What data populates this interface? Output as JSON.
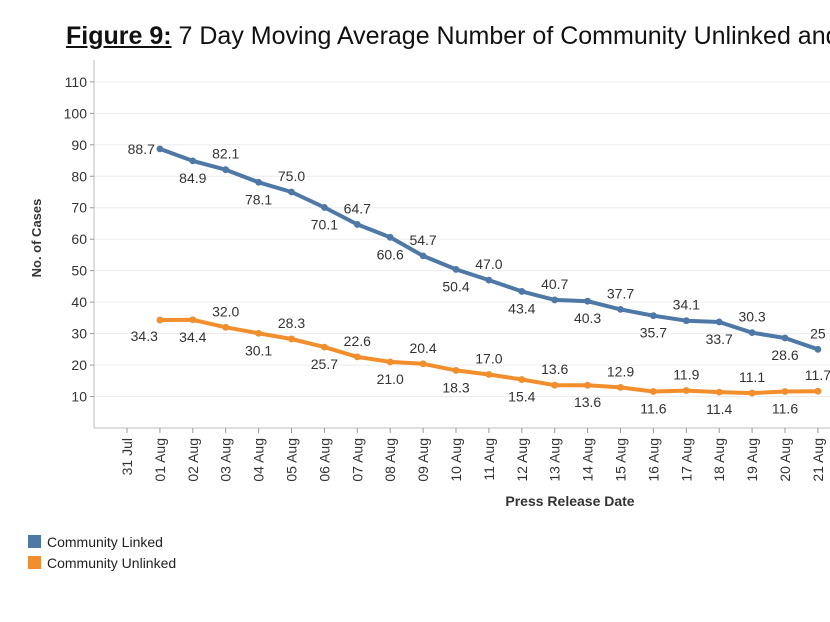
{
  "title": {
    "prefix": "Figure 9:",
    "text": "7 Day Moving Average Number of Community Unlinked and"
  },
  "chart_data": {
    "type": "line",
    "xlabel": "Press Release Date",
    "ylabel": "No. of Cases",
    "categories": [
      "31 Jul",
      "01 Aug",
      "02 Aug",
      "03 Aug",
      "04 Aug",
      "05 Aug",
      "06 Aug",
      "07 Aug",
      "08 Aug",
      "09 Aug",
      "10 Aug",
      "11 Aug",
      "12 Aug",
      "13 Aug",
      "14 Aug",
      "15 Aug",
      "16 Aug",
      "17 Aug",
      "18 Aug",
      "19 Aug",
      "20 Aug",
      "21 Aug"
    ],
    "yticks": [
      10,
      20,
      30,
      40,
      50,
      60,
      70,
      80,
      90,
      100,
      110
    ],
    "ylim": [
      0,
      115
    ],
    "grid": true,
    "legend_position": "bottom-left",
    "series": [
      {
        "name": "Community Linked",
        "color": "#4e79a7",
        "values": [
          null,
          88.7,
          84.9,
          82.1,
          78.1,
          75.0,
          70.1,
          64.7,
          60.6,
          54.7,
          50.4,
          47.0,
          43.4,
          40.7,
          40.3,
          37.7,
          35.7,
          34.1,
          33.7,
          30.3,
          28.6,
          25
        ],
        "labels": [
          null,
          "88.7",
          "84.9",
          "82.1",
          "78.1",
          "75.0",
          "70.1",
          "64.7",
          "60.6",
          "54.7",
          "50.4",
          "47.0",
          "43.4",
          "40.7",
          "40.3",
          "37.7",
          "35.7",
          "34.1",
          "33.7",
          "30.3",
          "28.6",
          "25"
        ]
      },
      {
        "name": "Community Unlinked",
        "color": "#f28e2b",
        "values": [
          null,
          34.3,
          34.4,
          32.0,
          30.1,
          28.3,
          25.7,
          22.6,
          21.0,
          20.4,
          18.3,
          17.0,
          15.4,
          13.6,
          13.6,
          12.9,
          11.6,
          11.9,
          11.4,
          11.1,
          11.6,
          11.7
        ],
        "labels": [
          null,
          "34.3",
          "34.4",
          "32.0",
          "30.1",
          "28.3",
          "25.7",
          "22.6",
          "21.0",
          "20.4",
          "18.3",
          "17.0",
          "15.4",
          "13.6",
          "13.6",
          "12.9",
          "11.6",
          "11.9",
          "11.4",
          "11.1",
          "11.6",
          "11.7"
        ]
      }
    ]
  }
}
